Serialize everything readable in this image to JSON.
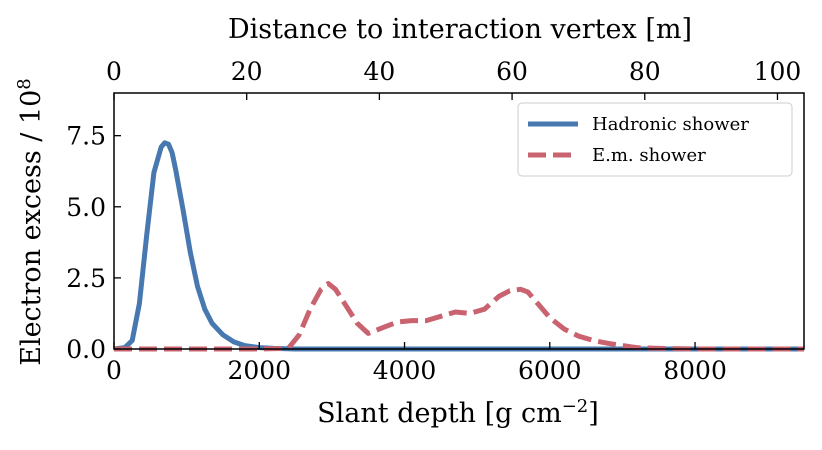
{
  "chart_data": {
    "type": "line",
    "xlabel_main": "Slant depth [g cm",
    "xlabel_exp": "−2",
    "xlabel_close": "]",
    "xlabel_top": "Distance to interaction vertex [m]",
    "ylabel_main": "Electron excess / 10",
    "ylabel_exp": "8",
    "xlim": [
      0,
      9500
    ],
    "ylim": [
      0,
      9
    ],
    "xlim_top": [
      0,
      104
    ],
    "xticks": [
      0,
      2000,
      4000,
      6000,
      8000
    ],
    "xtick_labels": [
      "0",
      "2000",
      "4000",
      "6000",
      "8000"
    ],
    "yticks": [
      0,
      2.5,
      5,
      7.5
    ],
    "ytick_labels": [
      "0.0",
      "2.5",
      "5.0",
      "7.5"
    ],
    "xticks_top": [
      0,
      20,
      40,
      60,
      80,
      100
    ],
    "xtick_labels_top": [
      "0",
      "20",
      "40",
      "60",
      "80",
      "100"
    ],
    "legend_position": "top-right",
    "series": [
      {
        "name": "Hadronic shower",
        "color": "#4878b0",
        "style": "solid",
        "x": [
          0,
          150,
          250,
          350,
          450,
          550,
          650,
          700,
          750,
          800,
          850,
          950,
          1050,
          1150,
          1250,
          1350,
          1500,
          1650,
          1800,
          2000,
          2200,
          2500,
          3000,
          9500
        ],
        "y": [
          0,
          0.05,
          0.3,
          1.6,
          4.0,
          6.2,
          7.1,
          7.25,
          7.2,
          6.9,
          6.3,
          4.9,
          3.4,
          2.2,
          1.4,
          0.9,
          0.5,
          0.25,
          0.12,
          0.05,
          0.02,
          0,
          0,
          0
        ]
      },
      {
        "name": "E.m. shower",
        "color": "#c9636f",
        "style": "dashed",
        "x": [
          0,
          1000,
          2000,
          2400,
          2550,
          2700,
          2850,
          2950,
          3050,
          3200,
          3350,
          3500,
          3700,
          3900,
          4100,
          4300,
          4500,
          4700,
          4900,
          5100,
          5300,
          5450,
          5600,
          5700,
          5850,
          6000,
          6200,
          6400,
          6600,
          6800,
          7000,
          7200,
          7500,
          8000,
          9500
        ],
        "y": [
          0,
          0,
          0,
          0.02,
          0.5,
          1.4,
          2.1,
          2.3,
          2.1,
          1.5,
          0.9,
          0.55,
          0.75,
          0.95,
          1.0,
          1.0,
          1.15,
          1.3,
          1.25,
          1.4,
          1.85,
          2.05,
          2.1,
          2.0,
          1.55,
          1.1,
          0.7,
          0.45,
          0.3,
          0.2,
          0.12,
          0.05,
          0.02,
          0,
          0
        ]
      }
    ]
  }
}
